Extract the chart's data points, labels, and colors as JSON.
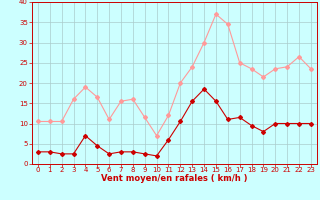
{
  "x": [
    0,
    1,
    2,
    3,
    4,
    5,
    6,
    7,
    8,
    9,
    10,
    11,
    12,
    13,
    14,
    15,
    16,
    17,
    18,
    19,
    20,
    21,
    22,
    23
  ],
  "mean_wind": [
    3,
    3,
    2.5,
    2.5,
    7,
    4.5,
    2.5,
    3,
    3,
    2.5,
    2,
    6,
    10.5,
    15.5,
    18.5,
    15.5,
    11,
    11.5,
    9.5,
    8,
    10,
    10,
    10,
    10
  ],
  "gust_wind": [
    10.5,
    10.5,
    10.5,
    16,
    19,
    16.5,
    11,
    15.5,
    16,
    11.5,
    7,
    12,
    20,
    24,
    30,
    37,
    34.5,
    25,
    23.5,
    21.5,
    23.5,
    24,
    26.5,
    23.5
  ],
  "mean_color": "#cc0000",
  "gust_color": "#ff9999",
  "bg_color": "#ccffff",
  "grid_color": "#aacccc",
  "xlabel": "Vent moyen/en rafales ( km/h )",
  "xlim": [
    -0.5,
    23.5
  ],
  "ylim": [
    0,
    40
  ],
  "yticks": [
    0,
    5,
    10,
    15,
    20,
    25,
    30,
    35,
    40
  ],
  "xticks": [
    0,
    1,
    2,
    3,
    4,
    5,
    6,
    7,
    8,
    9,
    10,
    11,
    12,
    13,
    14,
    15,
    16,
    17,
    18,
    19,
    20,
    21,
    22,
    23
  ],
  "markersize": 2.0,
  "linewidth": 0.8,
  "xlabel_color": "#cc0000",
  "tick_color": "#cc0000",
  "axis_color": "#cc0000",
  "tick_fontsize": 5.0,
  "xlabel_fontsize": 6.0
}
